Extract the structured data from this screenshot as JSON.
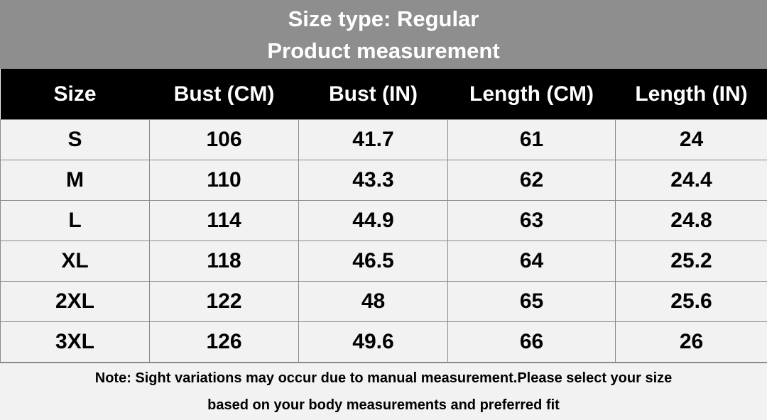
{
  "header": {
    "title_lines": [
      "Size type: Regular",
      "Product measurement"
    ]
  },
  "table": {
    "columns": [
      "Size",
      "Bust (CM)",
      "Bust (IN)",
      "Length (CM)",
      "Length (IN)"
    ],
    "rows": [
      [
        "S",
        "106",
        "41.7",
        "61",
        "24"
      ],
      [
        "M",
        "110",
        "43.3",
        "62",
        "24.4"
      ],
      [
        "L",
        "114",
        "44.9",
        "63",
        "24.8"
      ],
      [
        "XL",
        "118",
        "46.5",
        "64",
        "25.2"
      ],
      [
        "2XL",
        "122",
        "48",
        "65",
        "25.6"
      ],
      [
        "3XL",
        "126",
        "49.6",
        "66",
        "26"
      ]
    ]
  },
  "note": {
    "lines": [
      "Note: Sight variations may occur due to manual measurement.Please select your size",
      "based on your body measurements and preferred fit"
    ]
  }
}
